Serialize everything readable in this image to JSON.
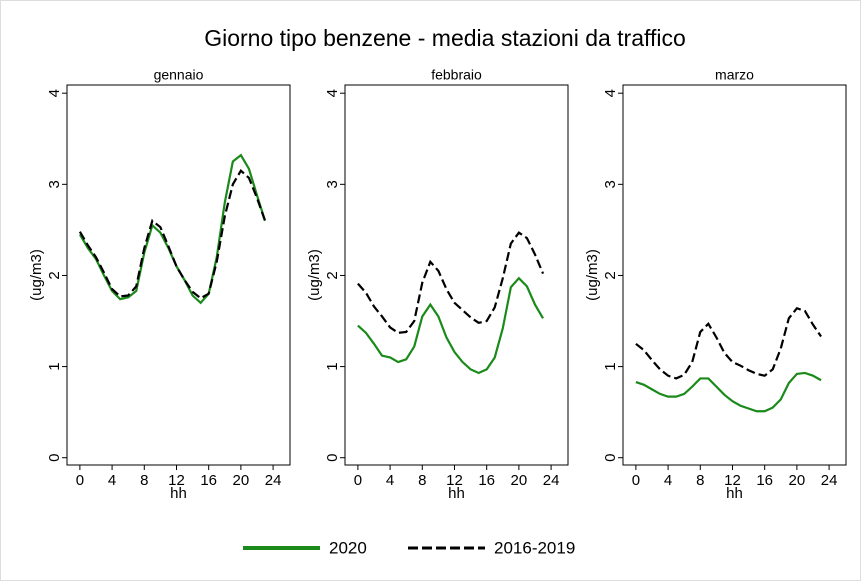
{
  "title": "Giorno tipo benzene - media stazioni da traffico",
  "chart_data": [
    {
      "type": "line",
      "subtitle": "gennaio",
      "xlabel": "hh",
      "ylabel": "(ug/m3)",
      "x": [
        0,
        1,
        2,
        3,
        4,
        5,
        6,
        7,
        8,
        9,
        10,
        11,
        12,
        13,
        14,
        15,
        16,
        17,
        18,
        19,
        20,
        21,
        22,
        23
      ],
      "xlim": [
        -1.6,
        26.1
      ],
      "xticks": [
        0,
        4,
        8,
        12,
        16,
        20,
        24
      ],
      "ylim": [
        -0.08,
        4.09
      ],
      "yticks": [
        0,
        1,
        2,
        3,
        4
      ],
      "series": [
        {
          "name": "2020",
          "color": "#1a8a1a",
          "dash": false,
          "values": [
            2.45,
            2.3,
            2.18,
            2.0,
            1.83,
            1.74,
            1.76,
            1.83,
            2.25,
            2.55,
            2.47,
            2.3,
            2.1,
            1.95,
            1.78,
            1.7,
            1.8,
            2.2,
            2.8,
            3.25,
            3.32,
            3.17,
            2.88,
            2.6
          ]
        },
        {
          "name": "2016-2019",
          "color": "#000000",
          "dash": true,
          "values": [
            2.48,
            2.33,
            2.2,
            2.03,
            1.85,
            1.77,
            1.78,
            1.88,
            2.3,
            2.6,
            2.53,
            2.32,
            2.1,
            1.95,
            1.82,
            1.75,
            1.8,
            2.15,
            2.65,
            3.0,
            3.15,
            3.07,
            2.85,
            2.6
          ]
        }
      ]
    },
    {
      "type": "line",
      "subtitle": "febbraio",
      "xlabel": "hh",
      "ylabel": "(ug/m3)",
      "x": [
        0,
        1,
        2,
        3,
        4,
        5,
        6,
        7,
        8,
        9,
        10,
        11,
        12,
        13,
        14,
        15,
        16,
        17,
        18,
        19,
        20,
        21,
        22,
        23
      ],
      "xlim": [
        -1.6,
        26.1
      ],
      "xticks": [
        0,
        4,
        8,
        12,
        16,
        20,
        24
      ],
      "ylim": [
        -0.08,
        4.09
      ],
      "yticks": [
        0,
        1,
        2,
        3,
        4
      ],
      "series": [
        {
          "name": "2020",
          "color": "#1a8a1a",
          "dash": false,
          "values": [
            1.45,
            1.37,
            1.25,
            1.12,
            1.1,
            1.05,
            1.08,
            1.22,
            1.55,
            1.68,
            1.55,
            1.32,
            1.16,
            1.05,
            0.97,
            0.93,
            0.97,
            1.1,
            1.42,
            1.87,
            1.97,
            1.88,
            1.68,
            1.53
          ]
        },
        {
          "name": "2016-2019",
          "color": "#000000",
          "dash": true,
          "values": [
            1.91,
            1.81,
            1.66,
            1.55,
            1.43,
            1.37,
            1.38,
            1.5,
            1.92,
            2.15,
            2.05,
            1.85,
            1.7,
            1.62,
            1.54,
            1.48,
            1.5,
            1.65,
            1.97,
            2.35,
            2.47,
            2.41,
            2.23,
            2.02
          ]
        }
      ]
    },
    {
      "type": "line",
      "subtitle": "marzo",
      "xlabel": "hh",
      "ylabel": "(ug/m3)",
      "x": [
        0,
        1,
        2,
        3,
        4,
        5,
        6,
        7,
        8,
        9,
        10,
        11,
        12,
        13,
        14,
        15,
        16,
        17,
        18,
        19,
        20,
        21,
        22,
        23
      ],
      "xlim": [
        -1.6,
        26.1
      ],
      "xticks": [
        0,
        4,
        8,
        12,
        16,
        20,
        24
      ],
      "ylim": [
        -0.08,
        4.09
      ],
      "yticks": [
        0,
        1,
        2,
        3,
        4
      ],
      "series": [
        {
          "name": "2020",
          "color": "#1a8a1a",
          "dash": false,
          "values": [
            0.83,
            0.8,
            0.75,
            0.7,
            0.67,
            0.67,
            0.7,
            0.78,
            0.87,
            0.87,
            0.78,
            0.69,
            0.62,
            0.57,
            0.54,
            0.51,
            0.51,
            0.55,
            0.64,
            0.82,
            0.92,
            0.93,
            0.9,
            0.85
          ]
        },
        {
          "name": "2016-2019",
          "color": "#000000",
          "dash": true,
          "values": [
            1.25,
            1.18,
            1.07,
            0.97,
            0.9,
            0.87,
            0.91,
            1.05,
            1.38,
            1.47,
            1.32,
            1.15,
            1.05,
            1.01,
            0.96,
            0.92,
            0.9,
            0.97,
            1.2,
            1.53,
            1.64,
            1.61,
            1.46,
            1.33
          ]
        }
      ]
    }
  ]
}
